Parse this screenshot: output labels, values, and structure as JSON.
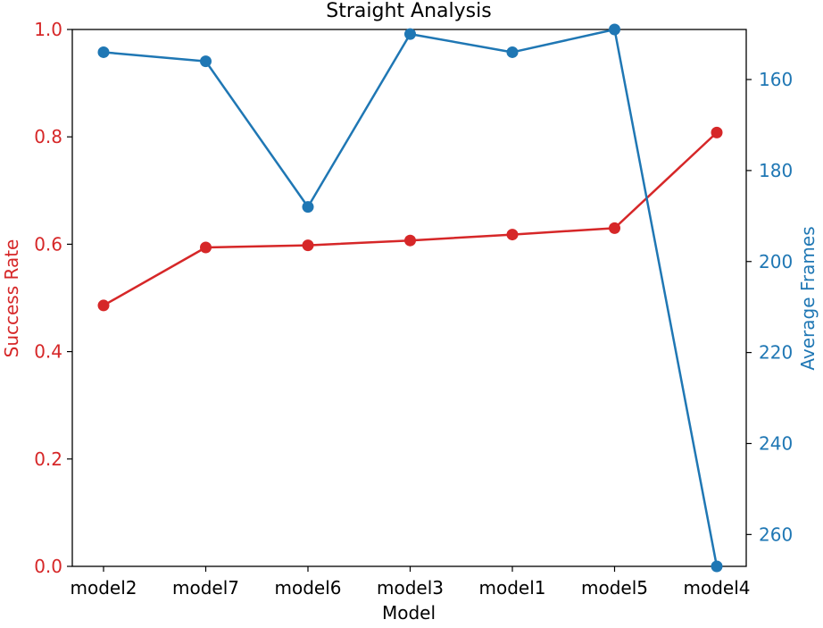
{
  "chart_data": {
    "type": "line",
    "title": "Straight Analysis",
    "xlabel": "Model",
    "ylabel_left": "Success Rate",
    "ylabel_right": "Average Frames",
    "categories": [
      "model2",
      "model7",
      "model6",
      "model3",
      "model1",
      "model5",
      "model4"
    ],
    "y_left": {
      "lim": [
        0.0,
        1.0
      ],
      "ticks": [
        "0.0",
        "0.2",
        "0.4",
        "0.6",
        "0.8",
        "1.0"
      ],
      "tick_values": [
        0.0,
        0.2,
        0.4,
        0.6,
        0.8,
        1.0
      ],
      "color": "#d62728"
    },
    "y_right": {
      "lim": [
        149.0,
        267.0
      ],
      "inverted": true,
      "ticks": [
        "160",
        "180",
        "200",
        "220",
        "240",
        "260"
      ],
      "tick_values": [
        160,
        180,
        200,
        220,
        240,
        260
      ],
      "color": "#1f77b4"
    },
    "series": [
      {
        "axis": "left",
        "color": "#d62728",
        "values": [
          0.486,
          0.594,
          0.598,
          0.607,
          0.618,
          0.63,
          0.808
        ]
      },
      {
        "axis": "right",
        "color": "#1f77b4",
        "values": [
          154.0,
          156.0,
          188.0,
          150.0,
          154.0,
          149.0,
          267.0
        ]
      }
    ],
    "grid": false
  }
}
